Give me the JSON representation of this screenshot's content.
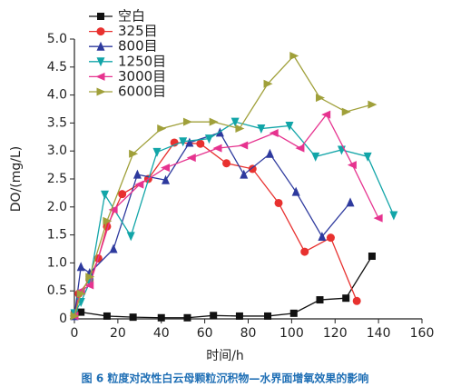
{
  "chart_data": {
    "type": "line",
    "caption": "图 6 粒度对改性白云母颗粒沉积物—水界面增氧效果的影响",
    "xlabel": "时间/h",
    "ylabel": "DO/(mg/L)",
    "xlim": [
      0,
      160
    ],
    "xticks": [
      0,
      20,
      40,
      60,
      80,
      100,
      120,
      140,
      160
    ],
    "ylim": [
      0,
      5
    ],
    "yticks": [
      0,
      0.5,
      {
        "value": 1,
        "label": "1.0"
      },
      1.5,
      {
        "value": 2,
        "label": "2.0"
      },
      2.5,
      {
        "value": 3,
        "label": "3.0"
      },
      3.5,
      {
        "value": 4,
        "label": "4.0"
      },
      4.5,
      {
        "value": 5,
        "label": "5.0"
      }
    ],
    "legend": "upper left",
    "series": [
      {
        "name": "空白",
        "color": "#111111",
        "marker": "square",
        "x": [
          0,
          3,
          15,
          27,
          40,
          52,
          64,
          76,
          89,
          101,
          113,
          125,
          137
        ],
        "values": [
          0.1,
          0.12,
          0.05,
          0.03,
          0.02,
          0.02,
          0.06,
          0.05,
          0.05,
          0.1,
          0.34,
          0.37,
          1.12
        ]
      },
      {
        "name": "325目",
        "color": "#e8312f",
        "marker": "circle",
        "x": [
          0,
          2,
          7,
          11,
          15,
          22,
          34,
          46,
          58,
          70,
          82,
          94,
          106,
          118,
          130
        ],
        "values": [
          0.1,
          0.45,
          0.7,
          1.08,
          1.65,
          2.23,
          2.5,
          3.15,
          3.13,
          2.78,
          2.68,
          2.07,
          1.2,
          1.45,
          0.32
        ]
      },
      {
        "name": "800目",
        "color": "#2e3a9e",
        "marker": "triangle-up",
        "x": [
          0,
          3,
          7,
          18,
          29,
          42,
          53,
          67,
          78,
          90,
          102,
          114,
          127
        ],
        "values": [
          0.05,
          0.93,
          0.82,
          1.25,
          2.58,
          2.48,
          3.15,
          3.33,
          2.58,
          2.95,
          2.27,
          1.47,
          2.08
        ]
      },
      {
        "name": "1250目",
        "color": "#12a5a8",
        "marker": "triangle-down",
        "x": [
          0,
          3,
          7,
          14,
          26,
          38,
          50,
          62,
          74,
          86,
          99,
          111,
          123,
          135,
          147
        ],
        "values": [
          0.1,
          0.3,
          0.65,
          2.22,
          1.48,
          2.98,
          3.17,
          3.22,
          3.52,
          3.4,
          3.45,
          2.9,
          3.02,
          2.9,
          1.85
        ]
      },
      {
        "name": "3000目",
        "color": "#e6338f",
        "marker": "triangle-left",
        "x": [
          0,
          3,
          7,
          18,
          30,
          42,
          54,
          66,
          78,
          92,
          104,
          116,
          128,
          140
        ],
        "values": [
          0.05,
          0.5,
          0.6,
          1.95,
          2.4,
          2.7,
          2.88,
          3.05,
          3.1,
          3.32,
          3.05,
          3.65,
          2.75,
          1.8
        ]
      },
      {
        "name": "6000目",
        "color": "#a0a03a",
        "marker": "triangle-right",
        "x": [
          0,
          3,
          7,
          15,
          27,
          40,
          52,
          64,
          76,
          89,
          101,
          113,
          125,
          137
        ],
        "values": [
          0.05,
          0.45,
          0.75,
          1.75,
          2.95,
          3.4,
          3.52,
          3.52,
          3.4,
          4.2,
          4.7,
          3.95,
          3.7,
          3.83
        ]
      }
    ]
  }
}
